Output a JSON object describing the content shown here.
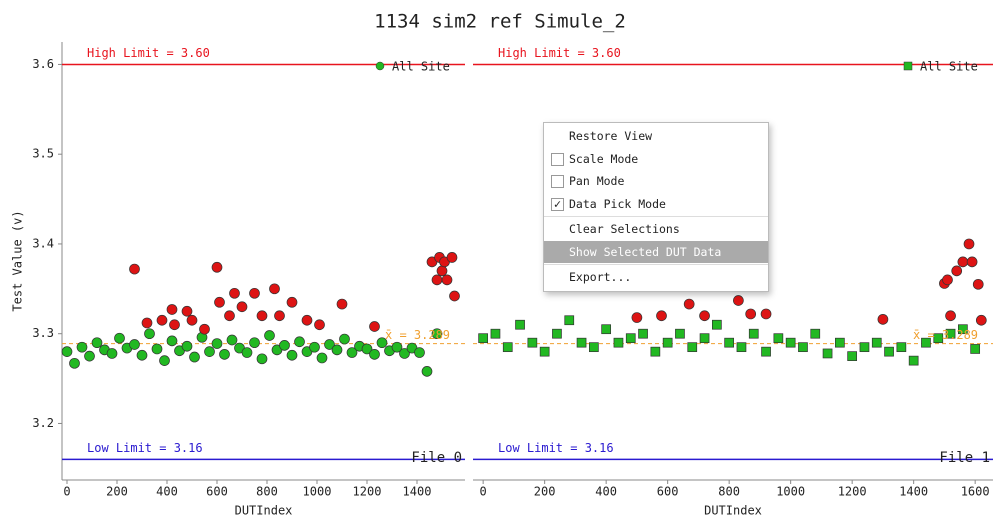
{
  "title": "1134 sim2 ref Simule_2",
  "chart_data": [
    {
      "type": "scatter",
      "file_label": "File 0",
      "xlabel": "DUTIndex",
      "ylabel": "Test Value (v)",
      "marker": "circle",
      "legend": "upper right",
      "xlim": [
        -20,
        1592
      ],
      "ylim": [
        3.137,
        3.625
      ],
      "xticks": [
        0,
        200,
        400,
        600,
        800,
        1000,
        1200,
        1400
      ],
      "yticks": [
        3.2,
        3.3,
        3.4,
        3.5,
        3.6
      ],
      "limits": [
        {
          "label": "High Limit = 3.60",
          "value": 3.6,
          "color": "#e8141e"
        },
        {
          "label": "Low Limit = 3.16",
          "value": 3.16,
          "color": "#2a1ad0"
        }
      ],
      "mean": {
        "label": "x̄ = 3.289",
        "value": 3.289,
        "color": "#f0a030"
      },
      "series": [
        {
          "name": "All Site",
          "color": "#22b822",
          "x": [
            0,
            30,
            60,
            90,
            120,
            150,
            180,
            210,
            240,
            270,
            300,
            330,
            360,
            390,
            420,
            450,
            480,
            510,
            540,
            570,
            600,
            630,
            660,
            690,
            720,
            750,
            780,
            810,
            840,
            870,
            900,
            930,
            960,
            990,
            1020,
            1050,
            1080,
            1110,
            1140,
            1170,
            1200,
            1230,
            1260,
            1290,
            1320,
            1350,
            1380,
            1410,
            1440,
            1480
          ],
          "values": [
            3.28,
            3.267,
            3.285,
            3.275,
            3.29,
            3.282,
            3.278,
            3.295,
            3.284,
            3.288,
            3.276,
            3.3,
            3.283,
            3.27,
            3.292,
            3.281,
            3.286,
            3.274,
            3.296,
            3.28,
            3.289,
            3.277,
            3.293,
            3.284,
            3.279,
            3.29,
            3.272,
            3.298,
            3.282,
            3.287,
            3.276,
            3.291,
            3.28,
            3.285,
            3.273,
            3.288,
            3.282,
            3.294,
            3.279,
            3.286,
            3.283,
            3.277,
            3.29,
            3.281,
            3.285,
            3.278,
            3.284,
            3.279,
            3.258,
            3.3
          ]
        },
        {
          "color": "#dd1414",
          "x": [
            270,
            320,
            380,
            420,
            430,
            480,
            500,
            550,
            600,
            610,
            650,
            670,
            700,
            750,
            780,
            830,
            850,
            900,
            960,
            1010,
            1100,
            1230,
            1460,
            1480,
            1490,
            1500,
            1510,
            1520,
            1540,
            1550
          ],
          "values": [
            3.372,
            3.312,
            3.315,
            3.327,
            3.31,
            3.325,
            3.315,
            3.305,
            3.374,
            3.335,
            3.32,
            3.345,
            3.33,
            3.345,
            3.32,
            3.35,
            3.32,
            3.335,
            3.315,
            3.31,
            3.333,
            3.308,
            3.38,
            3.36,
            3.385,
            3.37,
            3.38,
            3.36,
            3.385,
            3.342
          ]
        }
      ]
    },
    {
      "type": "scatter",
      "file_label": "File 1",
      "xlabel": "DUTIndex",
      "marker": "square",
      "legend": "upper right",
      "xlim": [
        -33,
        1658
      ],
      "ylim": [
        3.137,
        3.625
      ],
      "xticks": [
        0,
        200,
        400,
        600,
        800,
        1000,
        1200,
        1400,
        1600
      ],
      "limits": [
        {
          "label": "High Limit = 3.60",
          "value": 3.6,
          "color": "#e8141e"
        },
        {
          "label": "Low Limit = 3.16",
          "value": 3.16,
          "color": "#2a1ad0"
        }
      ],
      "mean": {
        "label": "x̄ = 3.289",
        "value": 3.289,
        "color": "#f0a030"
      },
      "series": [
        {
          "name": "All Site",
          "color": "#22b822",
          "x": [
            0,
            40,
            80,
            120,
            160,
            200,
            240,
            280,
            320,
            360,
            400,
            440,
            480,
            520,
            560,
            600,
            640,
            680,
            720,
            760,
            800,
            840,
            880,
            920,
            960,
            1000,
            1040,
            1080,
            1120,
            1160,
            1200,
            1240,
            1280,
            1320,
            1360,
            1400,
            1440,
            1480,
            1520,
            1560,
            1600
          ],
          "values": [
            3.295,
            3.3,
            3.285,
            3.31,
            3.29,
            3.28,
            3.3,
            3.315,
            3.29,
            3.285,
            3.305,
            3.29,
            3.295,
            3.3,
            3.28,
            3.29,
            3.3,
            3.285,
            3.295,
            3.31,
            3.29,
            3.285,
            3.3,
            3.28,
            3.295,
            3.29,
            3.285,
            3.3,
            3.278,
            3.29,
            3.275,
            3.285,
            3.29,
            3.28,
            3.285,
            3.27,
            3.29,
            3.295,
            3.3,
            3.305,
            3.283
          ]
        },
        {
          "color": "#dd1414",
          "x": [
            500,
            580,
            670,
            720,
            830,
            870,
            920,
            1300,
            1500,
            1510,
            1520,
            1540,
            1560,
            1580,
            1590,
            1610,
            1620
          ],
          "values": [
            3.318,
            3.32,
            3.333,
            3.32,
            3.337,
            3.322,
            3.322,
            3.316,
            3.356,
            3.36,
            3.32,
            3.37,
            3.38,
            3.4,
            3.38,
            3.355,
            3.315
          ]
        }
      ]
    }
  ],
  "context_menu": {
    "items": [
      {
        "label": "Restore View"
      },
      {
        "label": "Scale Mode",
        "checkbox": true,
        "checked": false
      },
      {
        "label": "Pan Mode",
        "checkbox": true,
        "checked": false
      },
      {
        "label": "Data Pick Mode",
        "checkbox": true,
        "checked": true
      },
      {
        "label": "Clear Selections"
      },
      {
        "label": "Show Selected DUT Data",
        "highlighted": true
      },
      {
        "label": "Export..."
      }
    ]
  }
}
